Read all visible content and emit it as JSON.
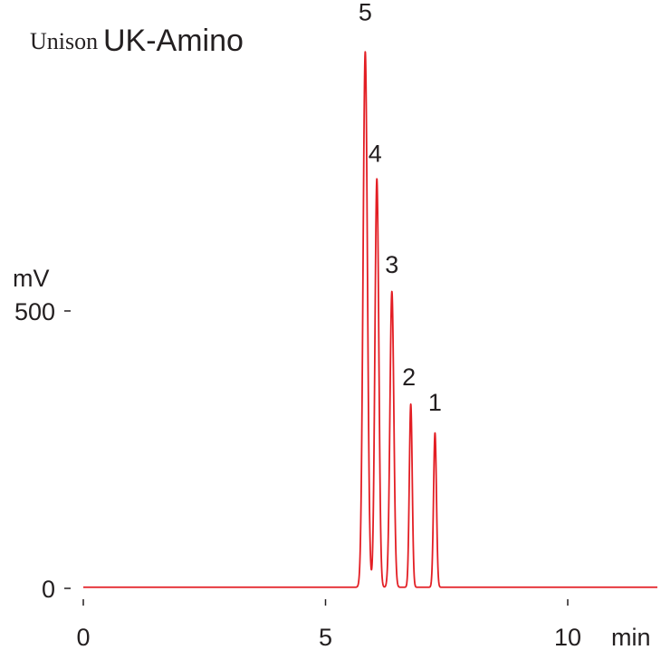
{
  "chart_data": {
    "type": "line",
    "title": {
      "brand": "Unison",
      "product": "UK-Amino"
    },
    "xlabel": "min",
    "ylabel": "mV",
    "xlim": [
      0,
      12
    ],
    "ylim": [
      0,
      1000
    ],
    "x_ticks": [
      0,
      5,
      10
    ],
    "x_tick_labels": [
      "0",
      "5",
      "10"
    ],
    "y_ticks": [
      0,
      500
    ],
    "y_tick_labels": [
      "0",
      "500"
    ],
    "grid": false,
    "line_color": "#e31e24",
    "text_color": "#231f20",
    "baseline_mV": 2,
    "peaks": [
      {
        "label": "5",
        "time": 5.82,
        "height": 965,
        "width": 0.045
      },
      {
        "label": "4",
        "time": 6.06,
        "height": 736,
        "width": 0.04
      },
      {
        "label": "3",
        "time": 6.37,
        "height": 533,
        "width": 0.04
      },
      {
        "label": "2",
        "time": 6.76,
        "height": 330,
        "width": 0.03
      },
      {
        "label": "1",
        "time": 7.26,
        "height": 278,
        "width": 0.03
      }
    ]
  }
}
